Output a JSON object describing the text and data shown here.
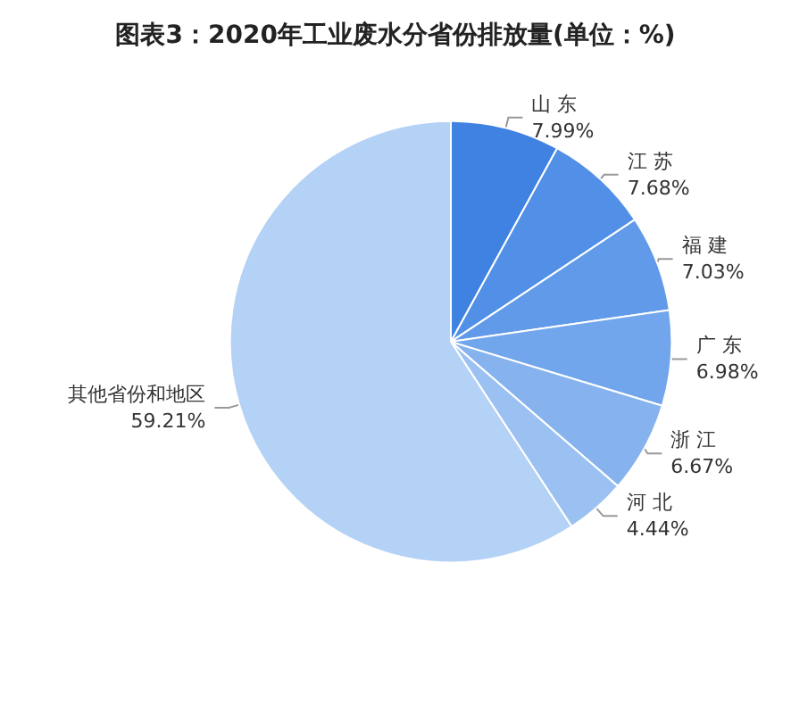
{
  "chart_data": {
    "type": "pie",
    "title": "图表3：2020年工业废水分省份排放量(单位：%)",
    "categories": [
      "山 东",
      "江 苏",
      "福 建",
      "广 东",
      "浙 江",
      "河 北",
      "其他省份和地区"
    ],
    "values": [
      7.99,
      7.68,
      7.03,
      6.98,
      6.67,
      4.44,
      59.21
    ],
    "value_labels": [
      "7.99%",
      "7.68%",
      "7.03%",
      "6.98%",
      "6.67%",
      "4.44%",
      "59.21%"
    ],
    "colors": [
      "#3f82e2",
      "#5190e6",
      "#609ae9",
      "#72a6ec",
      "#86b2ee",
      "#9bc1f2",
      "#b4d1f6"
    ],
    "legend": false
  }
}
